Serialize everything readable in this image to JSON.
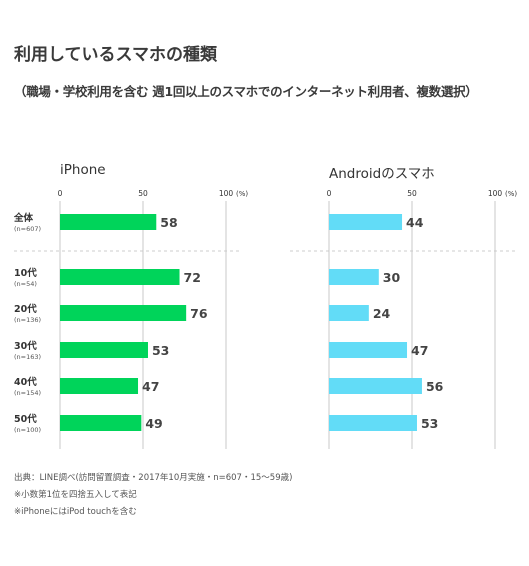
{
  "header": {
    "title": "利用しているスマホの種類",
    "subtitle": "（職場・学校利用を含む 週1回以上のスマホでのインターネット利用者、複数選択）"
  },
  "colors": {
    "iphone": "#00d45a",
    "android": "#62dcf7",
    "axis": "#c8c8c8",
    "divider": "#cccccc",
    "text": "#333333"
  },
  "chart_data": [
    {
      "type": "bar",
      "orientation": "horizontal",
      "title": "iPhone",
      "categories": [
        "全体",
        "10代",
        "20代",
        "30代",
        "40代",
        "50代"
      ],
      "category_notes": [
        "(n=607)",
        "(n=54)",
        "(n=136)",
        "(n=163)",
        "(n=154)",
        "(n=100)"
      ],
      "values": [
        58,
        72,
        76,
        53,
        47,
        49
      ],
      "xlim": [
        0,
        100
      ],
      "xticks": [
        "0",
        "50",
        "100"
      ],
      "unit_label": "(%)"
    },
    {
      "type": "bar",
      "orientation": "horizontal",
      "title": "Androidのスマホ",
      "categories": [
        "全体",
        "10代",
        "20代",
        "30代",
        "40代",
        "50代"
      ],
      "values": [
        44,
        30,
        24,
        47,
        56,
        53
      ],
      "xlim": [
        0,
        100
      ],
      "xticks": [
        "0",
        "50",
        "100"
      ],
      "unit_label": "(%)"
    }
  ],
  "footnotes": [
    "出典：LINE調べ(訪問留置調査・2017年10月実施・n=607・15〜59歳)",
    "※小数第1位を四捨五入して表記",
    "※iPhoneにはiPod touchを含む"
  ]
}
